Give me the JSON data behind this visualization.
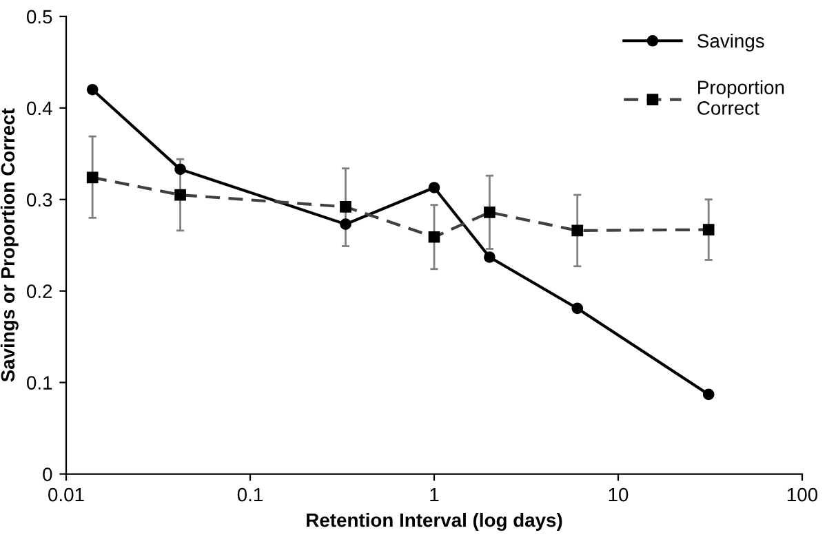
{
  "chart_data": {
    "type": "line",
    "xlabel": "Retention Interval (log days)",
    "ylabel": "Savings or Proportion Correct",
    "log": "x",
    "xlim": [
      0.01,
      100
    ],
    "xticks": [
      0.01,
      0.1,
      1,
      10,
      100
    ],
    "ylim": [
      0,
      0.5
    ],
    "yticks": [
      0,
      0.1,
      0.2,
      0.3,
      0.4,
      0.5
    ],
    "grid": false,
    "legend": "top right",
    "series": [
      {
        "name": "Savings",
        "color": "#000000",
        "marker": "circle",
        "line_style": "solid",
        "x": [
          0.0139,
          0.0417,
          0.33,
          1,
          2,
          6,
          31
        ],
        "values": [
          0.42,
          0.333,
          0.273,
          0.313,
          0.237,
          0.181,
          0.087
        ]
      },
      {
        "name": "Proportion\nCorrect",
        "color": "#404040",
        "marker": "square",
        "line_style": "dashed",
        "x": [
          0.0139,
          0.0417,
          0.33,
          1,
          2,
          6,
          31
        ],
        "values": [
          0.324,
          0.305,
          0.292,
          0.259,
          0.286,
          0.266,
          0.267
        ],
        "errors": [
          [
            0.28,
            0.369
          ],
          [
            0.266,
            0.344
          ],
          [
            0.249,
            0.334
          ],
          [
            0.224,
            0.294
          ],
          [
            0.246,
            0.326
          ],
          [
            0.227,
            0.305
          ],
          [
            0.234,
            0.3
          ]
        ]
      }
    ]
  }
}
